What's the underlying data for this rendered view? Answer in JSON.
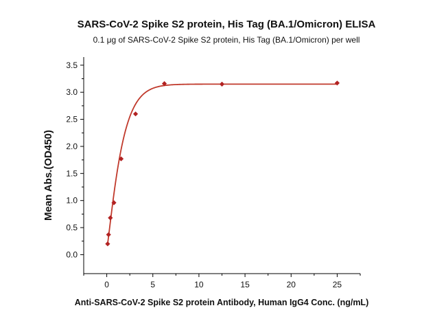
{
  "chart_data": {
    "type": "scatter",
    "title": "SARS-CoV-2 Spike S2 protein, His Tag (BA.1/Omicron) ELISA",
    "subtitle": "0.1 μg of SARS-CoV-2 Spike S2 protein, His Tag (BA.1/Omicron) per well",
    "xlabel": "Anti-SARS-CoV-2 Spike S2 protein Antibody, Human IgG4 Conc. (ng/mL)",
    "ylabel": "Mean Abs.(OD450)",
    "xlim": [
      -2.5,
      27.5
    ],
    "ylim": [
      -0.35,
      3.65
    ],
    "xticks": [
      0,
      5,
      10,
      15,
      20,
      25
    ],
    "yticks": [
      "0.0",
      "0.5",
      "1.0",
      "1.5",
      "2.0",
      "2.5",
      "3.0",
      "3.5"
    ],
    "grid": false,
    "legend": "none",
    "marker_color": "#b22222",
    "curve_color": "#c0392b",
    "series": [
      {
        "x": [
          0.098,
          0.195,
          0.39,
          0.78,
          1.56,
          3.125,
          6.25,
          12.5,
          25
        ],
        "y": [
          0.2,
          0.37,
          0.68,
          0.96,
          1.77,
          2.6,
          3.16,
          3.15,
          3.17
        ],
        "fit": "sigmoidal"
      }
    ]
  }
}
